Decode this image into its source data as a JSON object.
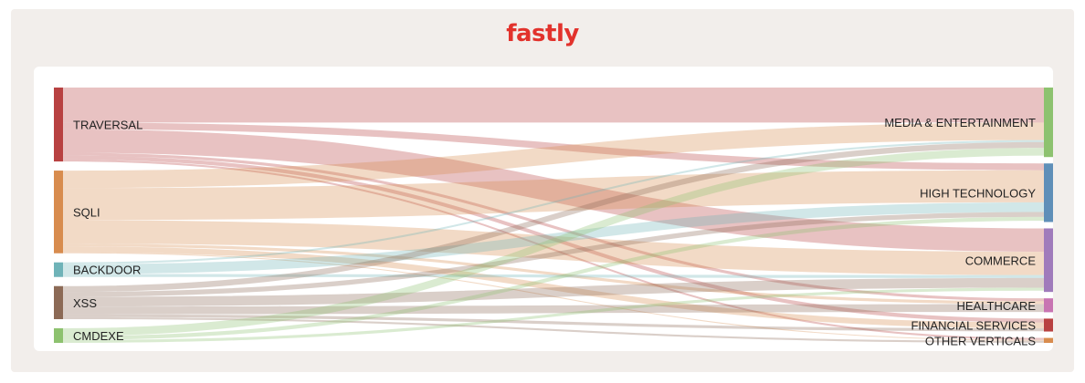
{
  "brand": {
    "logo_text": "fastly",
    "logo_color": "#e2322c"
  },
  "chart_data": {
    "type": "sankey",
    "sources": [
      {
        "name": "TRAVERSAL",
        "color": "#b84141"
      },
      {
        "name": "SQLI",
        "color": "#d88c4e"
      },
      {
        "name": "BACKDOOR",
        "color": "#6fb3b8"
      },
      {
        "name": "XSS",
        "color": "#8c6a56"
      },
      {
        "name": "CMDEXE",
        "color": "#8dc26f"
      }
    ],
    "targets": [
      {
        "name": "MEDIA & ENTERTAINMENT",
        "color": "#8dc26f"
      },
      {
        "name": "HIGH TECHNOLOGY",
        "color": "#5f8fb8"
      },
      {
        "name": "COMMERCE",
        "color": "#a07bbb"
      },
      {
        "name": "HEALTHCARE",
        "color": "#c874b2"
      },
      {
        "name": "FINANCIAL SERVICES",
        "color": "#b84141"
      },
      {
        "name": "OTHER VERTICALS",
        "color": "#d88c4e"
      }
    ],
    "links": [
      {
        "source": "TRAVERSAL",
        "target": "MEDIA & ENTERTAINMENT",
        "value": 36
      },
      {
        "source": "TRAVERSAL",
        "target": "HIGH TECHNOLOGY",
        "value": 7
      },
      {
        "source": "TRAVERSAL",
        "target": "COMMERCE",
        "value": 24
      },
      {
        "source": "TRAVERSAL",
        "target": "HEALTHCARE",
        "value": 3
      },
      {
        "source": "TRAVERSAL",
        "target": "FINANCIAL SERVICES",
        "value": 4
      },
      {
        "source": "TRAVERSAL",
        "target": "OTHER VERTICALS",
        "value": 2
      },
      {
        "source": "SQLI",
        "target": "MEDIA & ENTERTAINMENT",
        "value": 18
      },
      {
        "source": "SQLI",
        "target": "HIGH TECHNOLOGY",
        "value": 33
      },
      {
        "source": "SQLI",
        "target": "COMMERCE",
        "value": 24
      },
      {
        "source": "SQLI",
        "target": "HEALTHCARE",
        "value": 3
      },
      {
        "source": "SQLI",
        "target": "FINANCIAL SERVICES",
        "value": 6
      },
      {
        "source": "SQLI",
        "target": "OTHER VERTICALS",
        "value": 1
      },
      {
        "source": "BACKDOOR",
        "target": "MEDIA & ENTERTAINMENT",
        "value": 2
      },
      {
        "source": "BACKDOOR",
        "target": "HIGH TECHNOLOGY",
        "value": 10
      },
      {
        "source": "BACKDOOR",
        "target": "COMMERCE",
        "value": 3
      },
      {
        "source": "XSS",
        "target": "MEDIA & ENTERTAINMENT",
        "value": 6
      },
      {
        "source": "XSS",
        "target": "HIGH TECHNOLOGY",
        "value": 5
      },
      {
        "source": "XSS",
        "target": "COMMERCE",
        "value": 10
      },
      {
        "source": "XSS",
        "target": "HEALTHCARE",
        "value": 8
      },
      {
        "source": "XSS",
        "target": "FINANCIAL SERVICES",
        "value": 3
      },
      {
        "source": "XSS",
        "target": "OTHER VERTICALS",
        "value": 2
      },
      {
        "source": "CMDEXE",
        "target": "MEDIA & ENTERTAINMENT",
        "value": 8
      },
      {
        "source": "CMDEXE",
        "target": "HIGH TECHNOLOGY",
        "value": 4
      },
      {
        "source": "CMDEXE",
        "target": "COMMERCE",
        "value": 3
      }
    ]
  }
}
